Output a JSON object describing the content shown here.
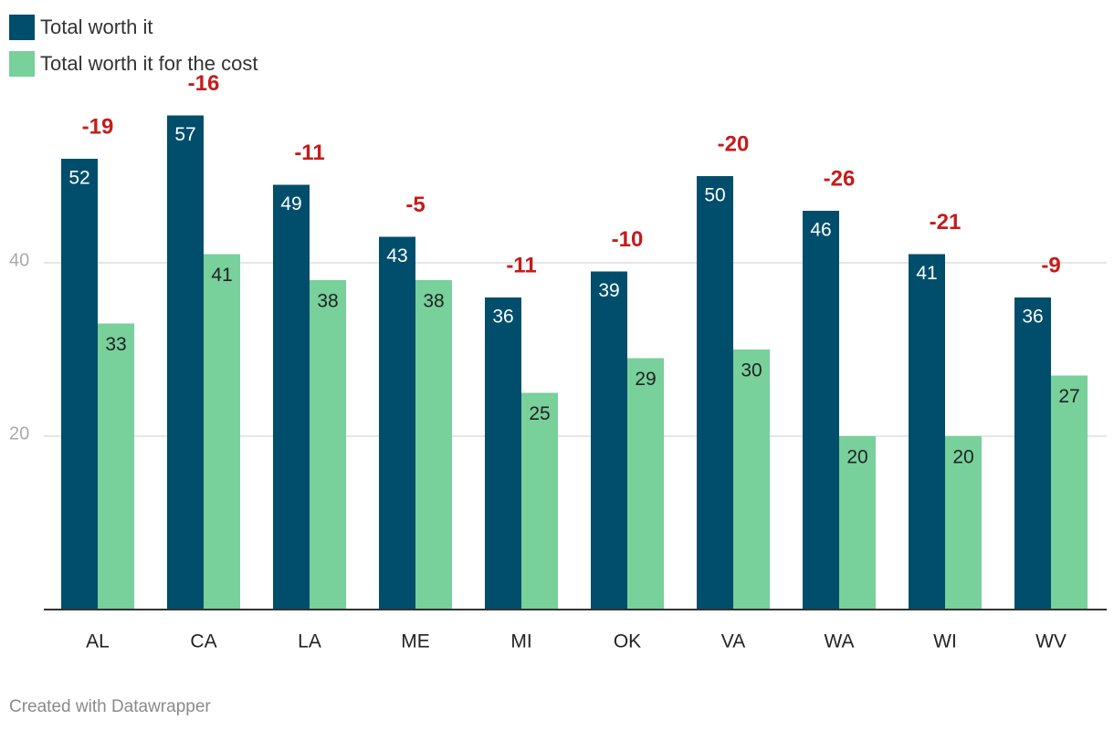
{
  "chart_data": {
    "type": "bar",
    "categories": [
      "AL",
      "CA",
      "LA",
      "ME",
      "MI",
      "OK",
      "VA",
      "WA",
      "WI",
      "WV"
    ],
    "series": [
      {
        "name": "Total worth it",
        "values": [
          52,
          57,
          49,
          43,
          36,
          39,
          50,
          46,
          41,
          36
        ]
      },
      {
        "name": "Total worth it for the cost",
        "values": [
          33,
          41,
          38,
          38,
          25,
          29,
          30,
          20,
          20,
          27
        ]
      }
    ],
    "annotations": [
      "-19",
      "-16",
      "-11",
      "-5",
      "-11",
      "-10",
      "-20",
      "-26",
      "-21",
      "-9"
    ],
    "yticks": [
      20,
      40
    ],
    "ylim": [
      0,
      60
    ],
    "grid": true,
    "legend_position": "top-left"
  },
  "colors": {
    "series1": "#004e6c",
    "series2": "#78d09b",
    "annotation": "#c61b1b",
    "grid": "#dddddd",
    "axis": "#333333",
    "tick_label": "#aaaaaa"
  },
  "footer": "Created with Datawrapper"
}
